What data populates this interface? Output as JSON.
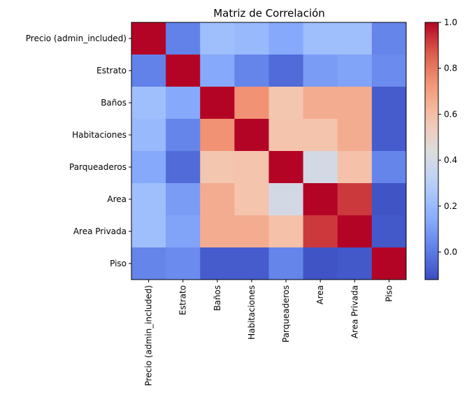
{
  "chart_data": {
    "type": "heatmap",
    "title": "Matriz de Correlación",
    "xlabel": "",
    "ylabel": "",
    "labels": [
      "Precio (admin_included)",
      "Estrato",
      "Baños",
      "Habitaciones",
      "Parqueaderos",
      "Area",
      "Area Privada",
      "Piso"
    ],
    "values": [
      [
        1.0,
        0.02,
        0.22,
        0.2,
        0.14,
        0.22,
        0.22,
        0.03
      ],
      [
        0.02,
        1.0,
        0.14,
        0.03,
        -0.04,
        0.1,
        0.12,
        0.05
      ],
      [
        0.22,
        0.14,
        1.0,
        0.74,
        0.57,
        0.66,
        0.66,
        -0.08
      ],
      [
        0.2,
        0.03,
        0.74,
        1.0,
        0.58,
        0.58,
        0.66,
        -0.08
      ],
      [
        0.14,
        -0.04,
        0.57,
        0.58,
        1.0,
        0.4,
        0.59,
        0.03
      ],
      [
        0.22,
        0.1,
        0.66,
        0.58,
        0.4,
        1.0,
        0.92,
        -0.1
      ],
      [
        0.22,
        0.12,
        0.66,
        0.66,
        0.59,
        0.92,
        1.0,
        -0.09
      ],
      [
        0.03,
        0.05,
        -0.08,
        -0.08,
        0.03,
        -0.1,
        -0.09,
        1.0
      ]
    ],
    "colorbar": {
      "vmin": -0.12,
      "vmax": 1.0,
      "ticks": [
        0.0,
        0.2,
        0.4,
        0.6,
        0.8,
        1.0
      ],
      "tick_labels": [
        "0.0",
        "0.2",
        "0.4",
        "0.6",
        "0.8",
        "1.0"
      ]
    },
    "colormap": "coolwarm",
    "grid": false
  }
}
